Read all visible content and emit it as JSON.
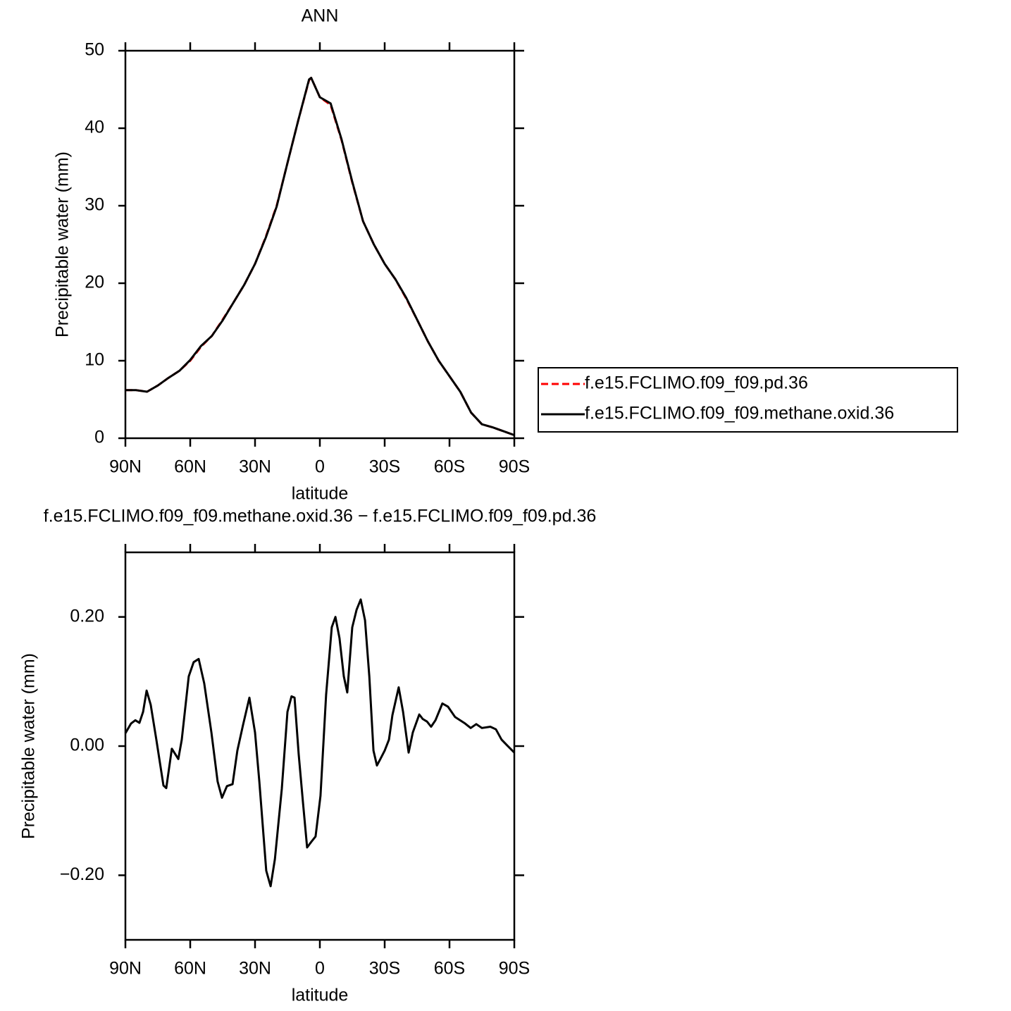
{
  "chart_data": [
    {
      "type": "line",
      "title": "ANN",
      "xlabel": "latitude",
      "ylabel": "Precipitable water (mm)",
      "x": [
        90,
        85,
        80,
        75,
        70,
        65,
        60,
        55,
        50,
        45,
        40,
        35,
        30,
        25,
        20,
        15,
        10,
        5,
        4,
        0,
        -5,
        -10,
        -15,
        -20,
        -25,
        -30,
        -35,
        -40,
        -45,
        -50,
        -55,
        -60,
        -65,
        -70,
        -75,
        -80,
        -85,
        -90
      ],
      "series": [
        {
          "name": "f.e15.FCLIMO.f09_f09.pd.36",
          "color": "#ff0000",
          "dash": true,
          "values": [
            6.2,
            6.2,
            6.0,
            6.8,
            7.8,
            8.7,
            10.0,
            11.8,
            13.2,
            15.3,
            17.5,
            19.8,
            22.5,
            26.0,
            30.0,
            35.5,
            41.0,
            46.2,
            46.5,
            44.0,
            43.0,
            38.5,
            33.0,
            28.0,
            25.0,
            22.5,
            20.5,
            18.0,
            15.3,
            12.5,
            10.0,
            8.0,
            6.0,
            3.3,
            1.8,
            1.4,
            0.9,
            0.4
          ]
        },
        {
          "name": "f.e15.FCLIMO.f09_f09.methane.oxid.36",
          "color": "#000000",
          "dash": false,
          "values": [
            6.2,
            6.2,
            6.0,
            6.8,
            7.8,
            8.7,
            10.1,
            11.9,
            13.2,
            15.2,
            17.5,
            19.8,
            22.5,
            25.9,
            29.9,
            35.5,
            41.0,
            46.3,
            46.5,
            44.0,
            43.2,
            38.6,
            33.1,
            28.0,
            25.0,
            22.5,
            20.5,
            18.1,
            15.3,
            12.5,
            10.0,
            8.0,
            6.0,
            3.3,
            1.8,
            1.4,
            0.9,
            0.4
          ]
        }
      ],
      "xlim": [
        90,
        -90
      ],
      "xticks": [
        {
          "value": 90,
          "label": "90N"
        },
        {
          "value": 60,
          "label": "60N"
        },
        {
          "value": 30,
          "label": "30N"
        },
        0,
        {
          "value": -30,
          "label": "30S"
        },
        {
          "value": -60,
          "label": "60S"
        },
        {
          "value": -90,
          "label": "90S"
        }
      ],
      "ylim": [
        0,
        50
      ],
      "yticks": [
        0,
        10,
        20,
        30,
        40,
        50
      ],
      "legend": "right"
    },
    {
      "type": "line",
      "title": "f.e15.FCLIMO.f09_f09.methane.oxid.36 − f.e15.FCLIMO.f09_f09.pd.36",
      "xlabel": "latitude",
      "ylabel": "Precipitable water (mm)",
      "x": [
        90,
        87.4,
        85.4,
        83.5,
        81.8,
        80.2,
        78.3,
        75.7,
        72.4,
        71.1,
        68.5,
        65.5,
        63.9,
        60.7,
        58.4,
        56.1,
        53.5,
        50.2,
        47.3,
        45.3,
        43.0,
        40.4,
        38.2,
        35.6,
        32.6,
        30.0,
        28.0,
        24.8,
        22.8,
        20.8,
        17.6,
        15.0,
        13.1,
        11.7,
        9.8,
        7.8,
        5.9,
        3.9,
        2.0,
        -0.3,
        -2.9,
        -5.5,
        -7.2,
        -9.1,
        -11.1,
        -12.7,
        -15.0,
        -17.0,
        -18.9,
        -20.9,
        -22.9,
        -24.8,
        -26.4,
        -28.0,
        -30.0,
        -32.0,
        -33.6,
        -36.5,
        -38.5,
        -41.1,
        -43.0,
        -46.0,
        -47.6,
        -49.6,
        -51.5,
        -53.5,
        -56.7,
        -59.3,
        -62.6,
        -67.2,
        -69.8,
        -72.4,
        -75.0,
        -78.9,
        -81.5,
        -84.1,
        -86.7,
        -90
      ],
      "values": [
        0.02,
        0.035,
        0.04,
        0.036,
        0.053,
        0.086,
        0.064,
        0.01,
        -0.061,
        -0.065,
        -0.004,
        -0.02,
        0.01,
        0.108,
        0.13,
        0.135,
        0.097,
        0.021,
        -0.055,
        -0.08,
        -0.062,
        -0.059,
        -0.007,
        0.032,
        0.075,
        0.021,
        -0.055,
        -0.193,
        -0.217,
        -0.175,
        -0.066,
        0.053,
        0.077,
        0.075,
        -0.012,
        -0.088,
        -0.157,
        -0.148,
        -0.14,
        -0.077,
        0.08,
        0.184,
        0.2,
        0.167,
        0.108,
        0.083,
        0.184,
        0.211,
        0.227,
        0.195,
        0.108,
        -0.007,
        -0.03,
        -0.02,
        -0.007,
        0.01,
        0.048,
        0.091,
        0.053,
        -0.01,
        0.021,
        0.049,
        0.042,
        0.038,
        0.03,
        0.04,
        0.066,
        0.061,
        0.045,
        0.035,
        0.028,
        0.034,
        0.028,
        0.03,
        0.026,
        0.01,
        0.001,
        -0.01
      ],
      "color": "#000000",
      "xlim": [
        90,
        -90
      ],
      "xticks": [
        {
          "value": 90,
          "label": "90N"
        },
        {
          "value": 60,
          "label": "60N"
        },
        {
          "value": 30,
          "label": "30N"
        },
        0,
        {
          "value": -30,
          "label": "30S"
        },
        {
          "value": -60,
          "label": "60S"
        },
        {
          "value": -90,
          "label": "90S"
        }
      ],
      "ylim": [
        -0.3,
        0.3
      ],
      "yticks": [
        {
          "value": -0.2,
          "label": "−0.20"
        },
        {
          "value": 0,
          "label": "0.00"
        },
        {
          "value": 0.2,
          "label": "0.20"
        }
      ]
    }
  ]
}
